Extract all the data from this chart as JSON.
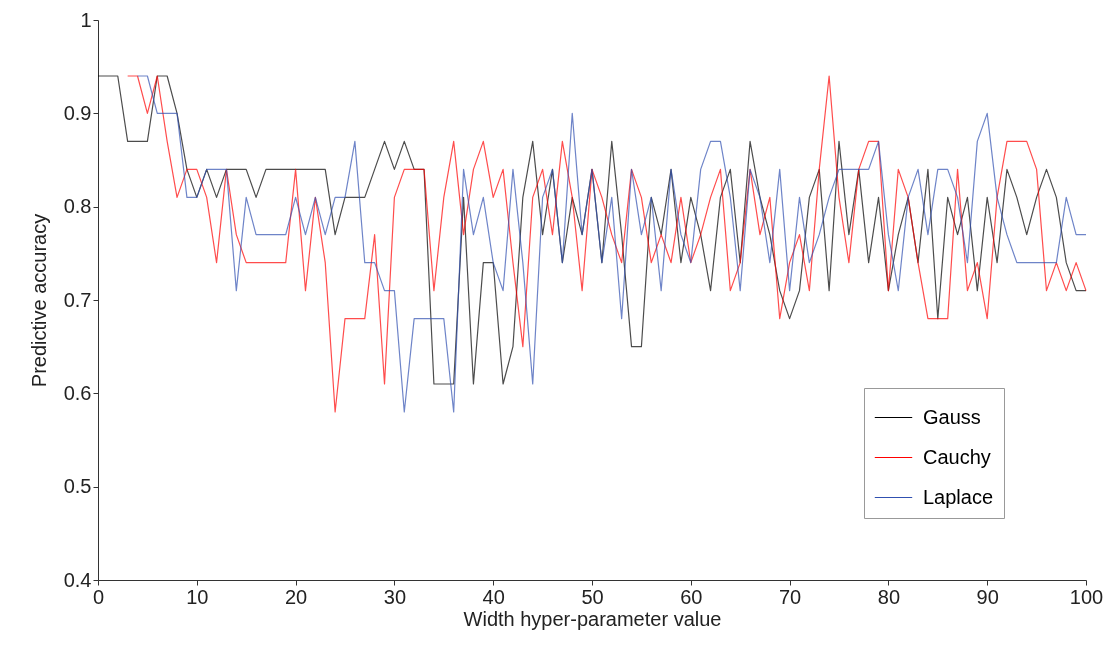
{
  "chart_data": {
    "type": "line",
    "xlabel": "Width hyper-parameter value",
    "ylabel": "Predictive accuracy",
    "x": [
      0,
      1,
      2,
      3,
      4,
      5,
      6,
      7,
      8,
      9,
      10,
      11,
      12,
      13,
      14,
      15,
      16,
      17,
      18,
      19,
      20,
      21,
      22,
      23,
      24,
      25,
      26,
      27,
      28,
      29,
      30,
      31,
      32,
      33,
      34,
      35,
      36,
      37,
      38,
      39,
      40,
      41,
      42,
      43,
      44,
      45,
      46,
      47,
      48,
      49,
      50,
      51,
      52,
      53,
      54,
      55,
      56,
      57,
      58,
      59,
      60,
      61,
      62,
      63,
      64,
      65,
      66,
      67,
      68,
      69,
      70,
      71,
      72,
      73,
      74,
      75,
      76,
      77,
      78,
      79,
      80,
      81,
      82,
      83,
      84,
      85,
      86,
      87,
      88,
      89,
      90,
      91,
      92,
      93,
      94,
      95,
      96,
      97,
      98,
      99,
      100
    ],
    "series": [
      {
        "name": "Gauss",
        "color": "#000000",
        "values": [
          0.94,
          0.94,
          0.94,
          0.87,
          0.87,
          0.87,
          0.94,
          0.94,
          0.9,
          0.84,
          0.81,
          0.84,
          0.81,
          0.84,
          0.84,
          0.84,
          0.81,
          0.84,
          0.84,
          0.84,
          0.84,
          0.84,
          0.84,
          0.84,
          0.77,
          0.81,
          0.81,
          0.81,
          0.84,
          0.87,
          0.84,
          0.87,
          0.84,
          0.84,
          0.61,
          0.61,
          0.61,
          0.81,
          0.61,
          0.74,
          0.74,
          0.61,
          0.65,
          0.81,
          0.87,
          0.77,
          0.84,
          0.74,
          0.81,
          0.77,
          0.84,
          0.74,
          0.87,
          0.77,
          0.65,
          0.65,
          0.81,
          0.77,
          0.84,
          0.74,
          0.81,
          0.77,
          0.71,
          0.81,
          0.84,
          0.74,
          0.87,
          0.81,
          0.77,
          0.71,
          0.68,
          0.71,
          0.81,
          0.84,
          0.71,
          0.87,
          0.77,
          0.84,
          0.74,
          0.81,
          0.71,
          0.77,
          0.81,
          0.74,
          0.84,
          0.68,
          0.81,
          0.77,
          0.81,
          0.71,
          0.81,
          0.74,
          0.84,
          0.81,
          0.77,
          0.81,
          0.84,
          0.81,
          0.74,
          0.71,
          0.71
        ]
      },
      {
        "name": "Cauchy",
        "color": "#ff0000",
        "values": [
          null,
          null,
          null,
          0.94,
          0.94,
          0.9,
          0.94,
          0.87,
          0.81,
          0.84,
          0.84,
          0.81,
          0.74,
          0.84,
          0.77,
          0.74,
          0.74,
          0.74,
          0.74,
          0.74,
          0.84,
          0.71,
          0.81,
          0.74,
          0.58,
          0.68,
          0.68,
          0.68,
          0.77,
          0.61,
          0.81,
          0.84,
          0.84,
          0.84,
          0.71,
          0.81,
          0.87,
          0.77,
          0.84,
          0.87,
          0.81,
          0.84,
          0.74,
          0.65,
          0.81,
          0.84,
          0.77,
          0.87,
          0.81,
          0.71,
          0.84,
          0.81,
          0.77,
          0.74,
          0.84,
          0.81,
          0.74,
          0.77,
          0.74,
          0.81,
          0.74,
          0.77,
          0.81,
          0.84,
          0.71,
          0.74,
          0.84,
          0.77,
          0.81,
          0.68,
          0.74,
          0.77,
          0.71,
          0.84,
          0.94,
          0.81,
          0.74,
          0.84,
          0.87,
          0.87,
          0.71,
          0.84,
          0.81,
          0.74,
          0.68,
          0.68,
          0.68,
          0.84,
          0.71,
          0.74,
          0.68,
          0.81,
          0.87,
          0.87,
          0.87,
          0.84,
          0.71,
          0.74,
          0.71,
          0.74,
          0.71
        ]
      },
      {
        "name": "Laplace",
        "color": "#3050b0",
        "values": [
          null,
          null,
          null,
          null,
          0.94,
          0.94,
          0.9,
          0.9,
          0.9,
          0.81,
          0.81,
          0.84,
          0.84,
          0.84,
          0.71,
          0.81,
          0.77,
          0.77,
          0.77,
          0.77,
          0.81,
          0.77,
          0.81,
          0.77,
          0.81,
          0.81,
          0.87,
          0.74,
          0.74,
          0.71,
          0.71,
          0.58,
          0.68,
          0.68,
          0.68,
          0.68,
          0.58,
          0.84,
          0.77,
          0.81,
          0.74,
          0.71,
          0.84,
          0.74,
          0.61,
          0.81,
          0.84,
          0.74,
          0.9,
          0.77,
          0.84,
          0.74,
          0.81,
          0.68,
          0.84,
          0.77,
          0.81,
          0.71,
          0.84,
          0.77,
          0.74,
          0.84,
          0.87,
          0.87,
          0.81,
          0.71,
          0.84,
          0.81,
          0.74,
          0.84,
          0.71,
          0.81,
          0.74,
          0.77,
          0.81,
          0.84,
          0.84,
          0.84,
          0.84,
          0.87,
          0.77,
          0.71,
          0.81,
          0.84,
          0.77,
          0.84,
          0.84,
          0.81,
          0.74,
          0.87,
          0.9,
          0.81,
          0.77,
          0.74,
          0.74,
          0.74,
          0.74,
          0.74,
          0.81,
          0.77,
          0.77
        ]
      }
    ],
    "xlim": [
      0,
      100
    ],
    "ylim": [
      0.4,
      1
    ],
    "xticks": [
      0,
      10,
      20,
      30,
      40,
      50,
      60,
      70,
      80,
      90,
      100
    ],
    "yticks": [
      0.4,
      0.5,
      0.6,
      0.7,
      0.8,
      0.9,
      {
        "value": 1,
        "label": "1"
      }
    ],
    "legend": "bottom right"
  }
}
